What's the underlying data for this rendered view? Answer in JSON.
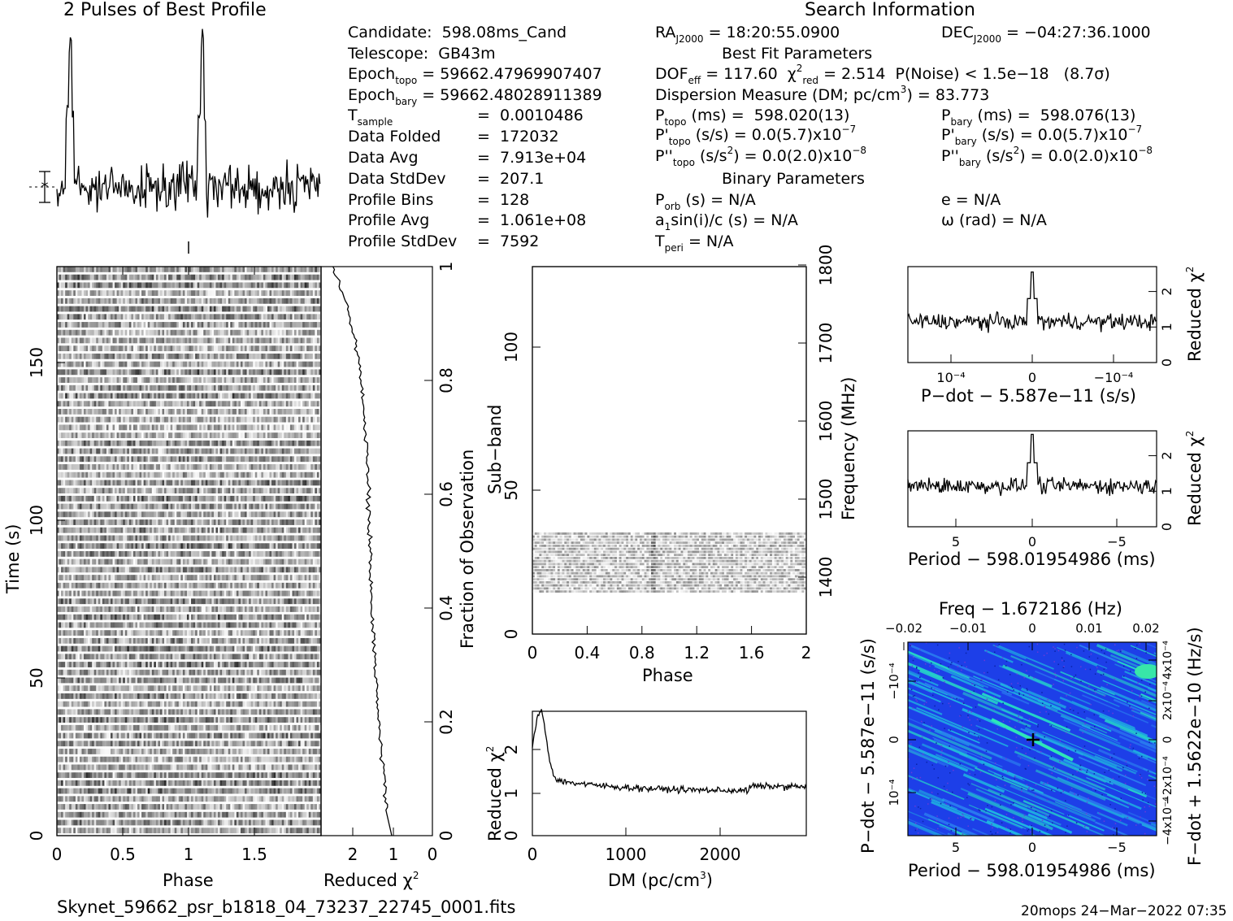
{
  "header": {
    "profile_title": "2 Pulses of Best Profile",
    "search_title": "Search Information"
  },
  "candidate": {
    "candidate_label": "Candidate:",
    "candidate_value": "598.08ms_Cand",
    "telescope_label": "Telescope:",
    "telescope_value": "GB43m",
    "epoch_topo": "= 59662.47969907407",
    "epoch_bary": "= 59662.48028911389",
    "t_sample": "0.0010486",
    "data_folded": "172032",
    "data_avg": "7.913e+04",
    "data_stddev": "207.1",
    "profile_bins": "128",
    "profile_avg": "1.061e+08",
    "profile_stddev": "7592",
    "lbl_data_folded": "Data Folded",
    "lbl_data_avg": "Data Avg",
    "lbl_data_stddev": "Data StdDev",
    "lbl_profile_bins": "Profile Bins",
    "lbl_profile_avg": "Profile Avg",
    "lbl_profile_stddev": "Profile StdDev"
  },
  "search": {
    "ra": "= 18:20:55.0900",
    "dec": "= −04:27:36.1000",
    "best_fit_title": "Best Fit Parameters",
    "dof_eff": "= 117.60",
    "chi2_red": "= 2.514",
    "p_noise": "P(Noise) < 1.5e−18   (8.7σ)",
    "dm_label": "Dispersion Measure (DM; pc/cm",
    "dm_value": ") = 83.773",
    "p_topo": "(ms) =  598.020(13)",
    "p_bary": "(ms) =  598.076(13)",
    "pd_topo": "(s/s) = 0.0(5.7)x10",
    "pd_bary": "(s/s) = 0.0(5.7)x10",
    "pd_exp": "−7",
    "pdd_topo_a": "(s/s",
    "pdd_topo_b": ") = 0.0(2.0)x10",
    "pdd_exp": "−8",
    "binary_title": "Binary Parameters",
    "p_orb": "(s) = N/A",
    "e": "e = N/A",
    "a1sini": "sin(i)/c (s) = N/A",
    "omega": "ω (rad) = N/A",
    "t_peri": "= N/A"
  },
  "footer": {
    "filename": "Skynet_59662_psr_b1818_04_73237_22745_0001.fits",
    "stamp": "20mops 24−Mar−2022 07:35"
  },
  "axes": {
    "phase_label": "Phase",
    "time_label": "Time (s)",
    "reduced_chi2": "Reduced χ",
    "fraction_obs": "Fraction of Observation",
    "subband": "Sub−band",
    "frequency": "Frequency (MHz)",
    "dm_axis": "DM (pc/cm",
    "pdot_axis": "P−dot − 5.587e−11 (s/s)",
    "period_axis": "Period − 598.01954986 (ms)",
    "freq_axis": "Freq − 1.672186 (Hz)",
    "pdot_vert": "P−dot − 5.587e−11 (s/s)",
    "fdot_vert": "F−dot + 1.5622e−10 (Hz/s)"
  },
  "ticks": {
    "phase_main": [
      "0",
      "0.5",
      "1",
      "1.5"
    ],
    "time": [
      "0",
      "50",
      "100",
      "150"
    ],
    "redchi_side": [
      "2",
      "1",
      "0"
    ],
    "fraction": [
      "0",
      "0.2",
      "0.4",
      "0.6",
      "0.8",
      "1"
    ],
    "subband": [
      "0",
      "50",
      "100"
    ],
    "freq": [
      "1400",
      "1500",
      "1600",
      "1700",
      "1800"
    ],
    "sb_phase": [
      "0",
      "0.4",
      "0.8",
      "1.2",
      "1.6",
      "2"
    ],
    "dm": [
      "0",
      "1000",
      "2000"
    ],
    "chi_small": [
      "0",
      "1",
      "2"
    ],
    "pdot": [
      "10⁻⁴",
      "0",
      "−10⁻⁴"
    ],
    "period": [
      "5",
      "0",
      "−5"
    ],
    "freq_top": [
      "−0.02",
      "−0.01",
      "0",
      "0.01",
      "0.02"
    ],
    "pdot_left": [
      "10⁻⁴",
      "0",
      "−10⁻⁴"
    ],
    "fdot_right": [
      "−4x10⁻⁴",
      "−2x10⁻⁴",
      "0",
      "2x10⁻⁴",
      "4x10⁻⁴"
    ]
  },
  "chart_data": [
    {
      "type": "line",
      "title": "2 Pulses of Best Profile",
      "x": "phase 0-2",
      "note_peaks": [
        0.1,
        1.1
      ],
      "ylabel": ""
    },
    {
      "type": "heatmap",
      "xlabel": "Phase",
      "ylabel": "Time (s)",
      "xlim": [
        0,
        2
      ],
      "ylim": [
        0,
        180
      ]
    },
    {
      "type": "line",
      "xlabel": "Reduced χ²",
      "ylabel": "Fraction of Observation",
      "xlim": [
        2.5,
        0
      ],
      "ylim": [
        0,
        1
      ]
    },
    {
      "type": "heatmap",
      "xlabel": "Phase",
      "ylabel": "Sub-band",
      "xlim": [
        0,
        2
      ],
      "ylim": [
        0,
        128
      ],
      "y2label": "Frequency (MHz)",
      "y2lim": [
        1350,
        1800
      ],
      "filled_subbands": [
        14,
        35
      ]
    },
    {
      "type": "line",
      "xlabel": "DM (pc/cm³)",
      "ylabel": "Reduced χ²",
      "xlim": [
        0,
        2900
      ],
      "ylim": [
        0,
        2.8
      ],
      "peak": {
        "x": 84,
        "y": 2.5
      }
    },
    {
      "type": "line",
      "xlabel": "P-dot − 5.587e−11 (s/s)",
      "ylabel": "Reduced χ²",
      "ylim": [
        0,
        2.7
      ],
      "peak_y": 2.5
    },
    {
      "type": "line",
      "xlabel": "Period − 598.01954986 (ms)",
      "ylabel": "Reduced χ²",
      "xlim": [
        8,
        -8
      ],
      "ylim": [
        0,
        2.7
      ],
      "peak_y": 2.6
    },
    {
      "type": "heatmap",
      "xlabel": "Period − 598.01954986 (ms)",
      "ylabel": "P-dot − 5.587e−11 (s/s)",
      "x2label": "Freq − 1.672186 (Hz)",
      "y2label": "F-dot + 1.5622e−10 (Hz/s)",
      "xlim": [
        8,
        -8
      ],
      "x2lim": [
        -0.022,
        0.022
      ],
      "best": {
        "x": 0,
        "y": 0
      }
    }
  ]
}
